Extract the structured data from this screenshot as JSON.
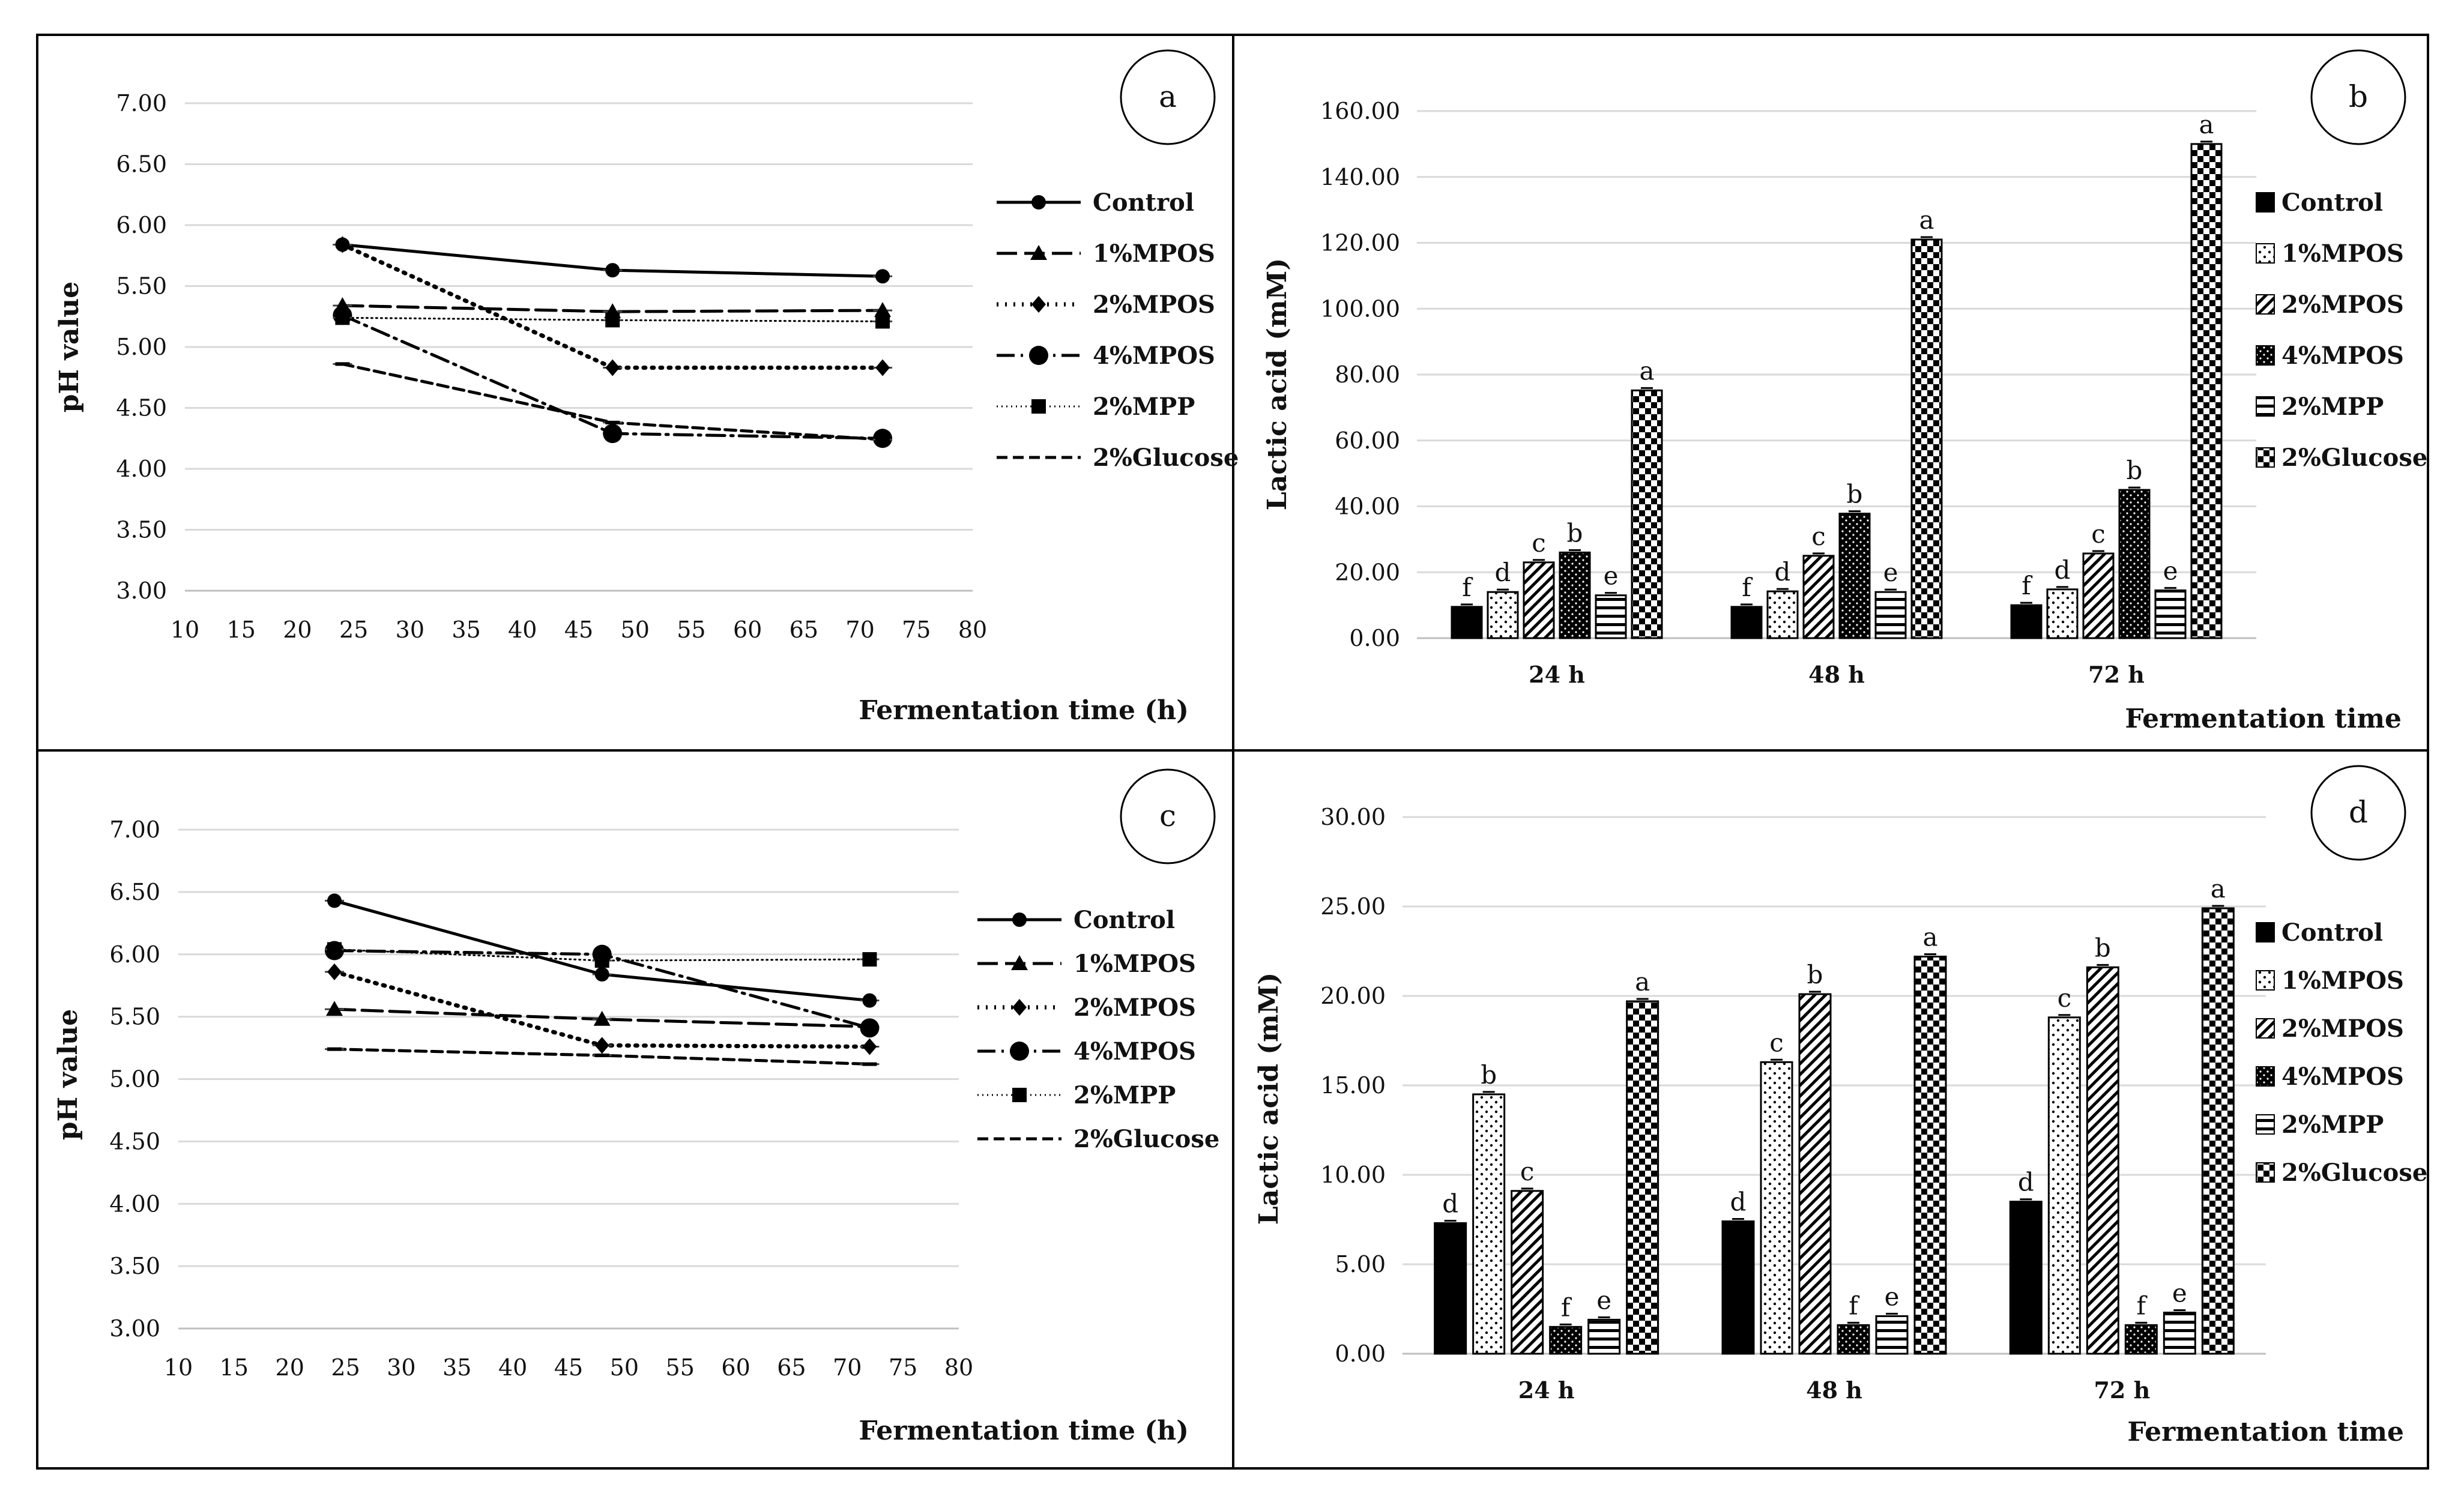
{
  "panels": {
    "a": {
      "type": "line",
      "badge": "a",
      "xlabel": "Fermentation time (h)",
      "ylabel": "pH value",
      "x_ticks": [
        "10",
        "15",
        "20",
        "25",
        "30",
        "35",
        "40",
        "45",
        "50",
        "55",
        "60",
        "65",
        "70",
        "75",
        "80"
      ],
      "y_ticks": [
        "3.00",
        "3.50",
        "4.00",
        "4.50",
        "5.00",
        "5.50",
        "6.00",
        "6.50",
        "7.00"
      ]
    },
    "b": {
      "type": "bar",
      "badge": "b",
      "xlabel": "Fermentation time",
      "ylabel": "Lactic acid (mM)",
      "x_ticks": [
        "24 h",
        "48 h",
        "72 h"
      ],
      "y_ticks": [
        "0.00",
        "20.00",
        "40.00",
        "60.00",
        "80.00",
        "100.00",
        "120.00",
        "140.00",
        "160.00"
      ]
    },
    "c": {
      "type": "line",
      "badge": "c",
      "xlabel": "Fermentation time (h)",
      "ylabel": "pH value",
      "x_ticks": [
        "10",
        "15",
        "20",
        "25",
        "30",
        "35",
        "40",
        "45",
        "50",
        "55",
        "60",
        "65",
        "70",
        "75",
        "80"
      ],
      "y_ticks": [
        "3.00",
        "3.50",
        "4.00",
        "4.50",
        "5.00",
        "5.50",
        "6.00",
        "6.50",
        "7.00"
      ]
    },
    "d": {
      "type": "bar",
      "badge": "d",
      "xlabel": "Fermentation time",
      "ylabel": "Lactic acid (mM)",
      "x_ticks": [
        "24 h",
        "48 h",
        "72 h"
      ],
      "y_ticks": [
        "0.00",
        "5.00",
        "10.00",
        "15.00",
        "20.00",
        "25.00",
        "30.00"
      ]
    }
  },
  "chart_data": [
    {
      "panel": "a",
      "type": "line",
      "xlabel": "Fermentation time (h)",
      "ylabel": "pH value",
      "xlim": [
        10,
        80
      ],
      "ylim": [
        3,
        7
      ],
      "x": [
        24,
        48,
        72
      ],
      "series": [
        {
          "name": "Control",
          "values": [
            5.84,
            5.63,
            5.58
          ]
        },
        {
          "name": "1%MPOS",
          "values": [
            5.34,
            5.29,
            5.3
          ]
        },
        {
          "name": "2%MPOS",
          "values": [
            5.84,
            4.83,
            4.83
          ]
        },
        {
          "name": "4%MPOS",
          "values": [
            5.26,
            4.29,
            4.25
          ]
        },
        {
          "name": "2%MPP",
          "values": [
            5.24,
            5.22,
            5.21
          ]
        },
        {
          "name": "2%Glucose",
          "values": [
            4.86,
            4.38,
            4.24
          ]
        }
      ]
    },
    {
      "panel": "b",
      "type": "bar",
      "xlabel": "Fermentation time",
      "ylabel": "Lactic acid (mM)",
      "ylim": [
        0,
        160
      ],
      "categories": [
        "24 h",
        "48 h",
        "72 h"
      ],
      "series": [
        {
          "name": "Control",
          "values": [
            9.5,
            9.5,
            10.0
          ],
          "letters": [
            "f",
            "f",
            "f"
          ]
        },
        {
          "name": "1%MPOS",
          "values": [
            14.0,
            14.2,
            14.8
          ],
          "letters": [
            "d",
            "d",
            "d"
          ]
        },
        {
          "name": "2%MPOS",
          "values": [
            23.0,
            25.0,
            25.7
          ],
          "letters": [
            "c",
            "c",
            "c"
          ]
        },
        {
          "name": "4%MPOS",
          "values": [
            26.0,
            37.8,
            45.0
          ],
          "letters": [
            "b",
            "b",
            "b"
          ]
        },
        {
          "name": "2%MPP",
          "values": [
            13.0,
            14.0,
            14.5
          ],
          "letters": [
            "e",
            "e",
            "e"
          ]
        },
        {
          "name": "2%Glucose",
          "values": [
            75.2,
            121.0,
            150.0
          ],
          "letters": [
            "a",
            "a",
            "a"
          ]
        }
      ]
    },
    {
      "panel": "c",
      "type": "line",
      "xlabel": "Fermentation time (h)",
      "ylabel": "pH value",
      "xlim": [
        10,
        80
      ],
      "ylim": [
        3,
        7
      ],
      "x": [
        24,
        48,
        72
      ],
      "series": [
        {
          "name": "Control",
          "values": [
            6.43,
            5.84,
            5.63
          ]
        },
        {
          "name": "1%MPOS",
          "values": [
            5.56,
            5.48,
            5.42
          ]
        },
        {
          "name": "2%MPOS",
          "values": [
            5.86,
            5.27,
            5.26
          ]
        },
        {
          "name": "4%MPOS",
          "values": [
            6.03,
            6.0,
            5.41
          ]
        },
        {
          "name": "2%MPP",
          "values": [
            6.04,
            5.95,
            5.96
          ]
        },
        {
          "name": "2%Glucose",
          "values": [
            5.24,
            5.19,
            5.12
          ]
        }
      ]
    },
    {
      "panel": "d",
      "type": "bar",
      "xlabel": "Fermentation time",
      "ylabel": "Lactic acid (mM)",
      "ylim": [
        0,
        30
      ],
      "categories": [
        "24 h",
        "48 h",
        "72 h"
      ],
      "series": [
        {
          "name": "Control",
          "values": [
            7.3,
            7.4,
            8.5
          ],
          "letters": [
            "d",
            "d",
            "d"
          ]
        },
        {
          "name": "1%MPOS",
          "values": [
            14.5,
            16.3,
            18.8
          ],
          "letters": [
            "b",
            "c",
            "c"
          ]
        },
        {
          "name": "2%MPOS",
          "values": [
            9.1,
            20.1,
            21.6
          ],
          "letters": [
            "c",
            "b",
            "b"
          ]
        },
        {
          "name": "4%MPOS",
          "values": [
            1.5,
            1.6,
            1.6
          ],
          "letters": [
            "f",
            "f",
            "f"
          ]
        },
        {
          "name": "2%MPP",
          "values": [
            1.9,
            2.1,
            2.3
          ],
          "letters": [
            "e",
            "e",
            "e"
          ]
        },
        {
          "name": "2%Glucose",
          "values": [
            19.7,
            22.2,
            24.9
          ],
          "letters": [
            "a",
            "a",
            "a"
          ]
        }
      ]
    }
  ]
}
